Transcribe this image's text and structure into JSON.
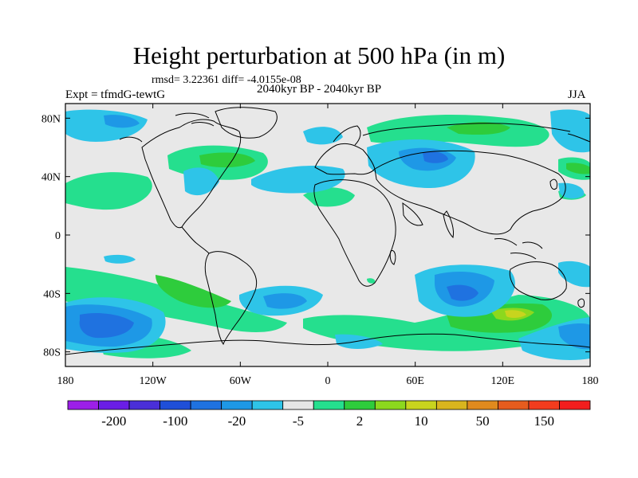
{
  "title": "Height perturbation at 500 hPa (in m)",
  "stats_text": "rmsd= 3.22361 diff= -4.0155e-08",
  "period_text": "2040kyr BP - 2040kyr BP",
  "expt_text": "Expt = tfmdG-tewtG",
  "season_text": "JJA",
  "lat_labels": [
    "80N",
    "40N",
    "0",
    "40S",
    "80S"
  ],
  "lat_values": [
    80,
    40,
    0,
    -40,
    -80
  ],
  "lon_labels": [
    "180",
    "120W",
    "60W",
    "0",
    "60E",
    "120E",
    "180"
  ],
  "lon_values": [
    -180,
    -120,
    -60,
    0,
    60,
    120,
    180
  ],
  "colorbar": {
    "colors": [
      "#9c1fe8",
      "#6a1ee6",
      "#4a2fd8",
      "#1f4fd8",
      "#1f72e0",
      "#1e98e6",
      "#2ec4e8",
      "#e6e6e6",
      "#25df8e",
      "#2ecc3c",
      "#8cd81e",
      "#c8d41e",
      "#d9b51e",
      "#e08a1e",
      "#e65c1e",
      "#f23c1e",
      "#f21e1e"
    ],
    "labels": [
      "-200",
      "-100",
      "-20",
      "-5",
      "2",
      "10",
      "50",
      "150"
    ],
    "label_positions": [
      1,
      3,
      5,
      7,
      9,
      11,
      13,
      15
    ]
  },
  "colors": {
    "background_zero": "#e8e8e8",
    "neg_light": "#2ec4e8",
    "neg_mid": "#1e98e6",
    "neg_strong": "#1f72e0",
    "pos_light": "#25df8e",
    "pos_mid": "#2ecc3c",
    "pos_strong": "#8cd81e",
    "pos_peak": "#c8d41e"
  },
  "map_extent": {
    "lon": [
      -180,
      180
    ],
    "lat": [
      -90,
      90
    ]
  }
}
